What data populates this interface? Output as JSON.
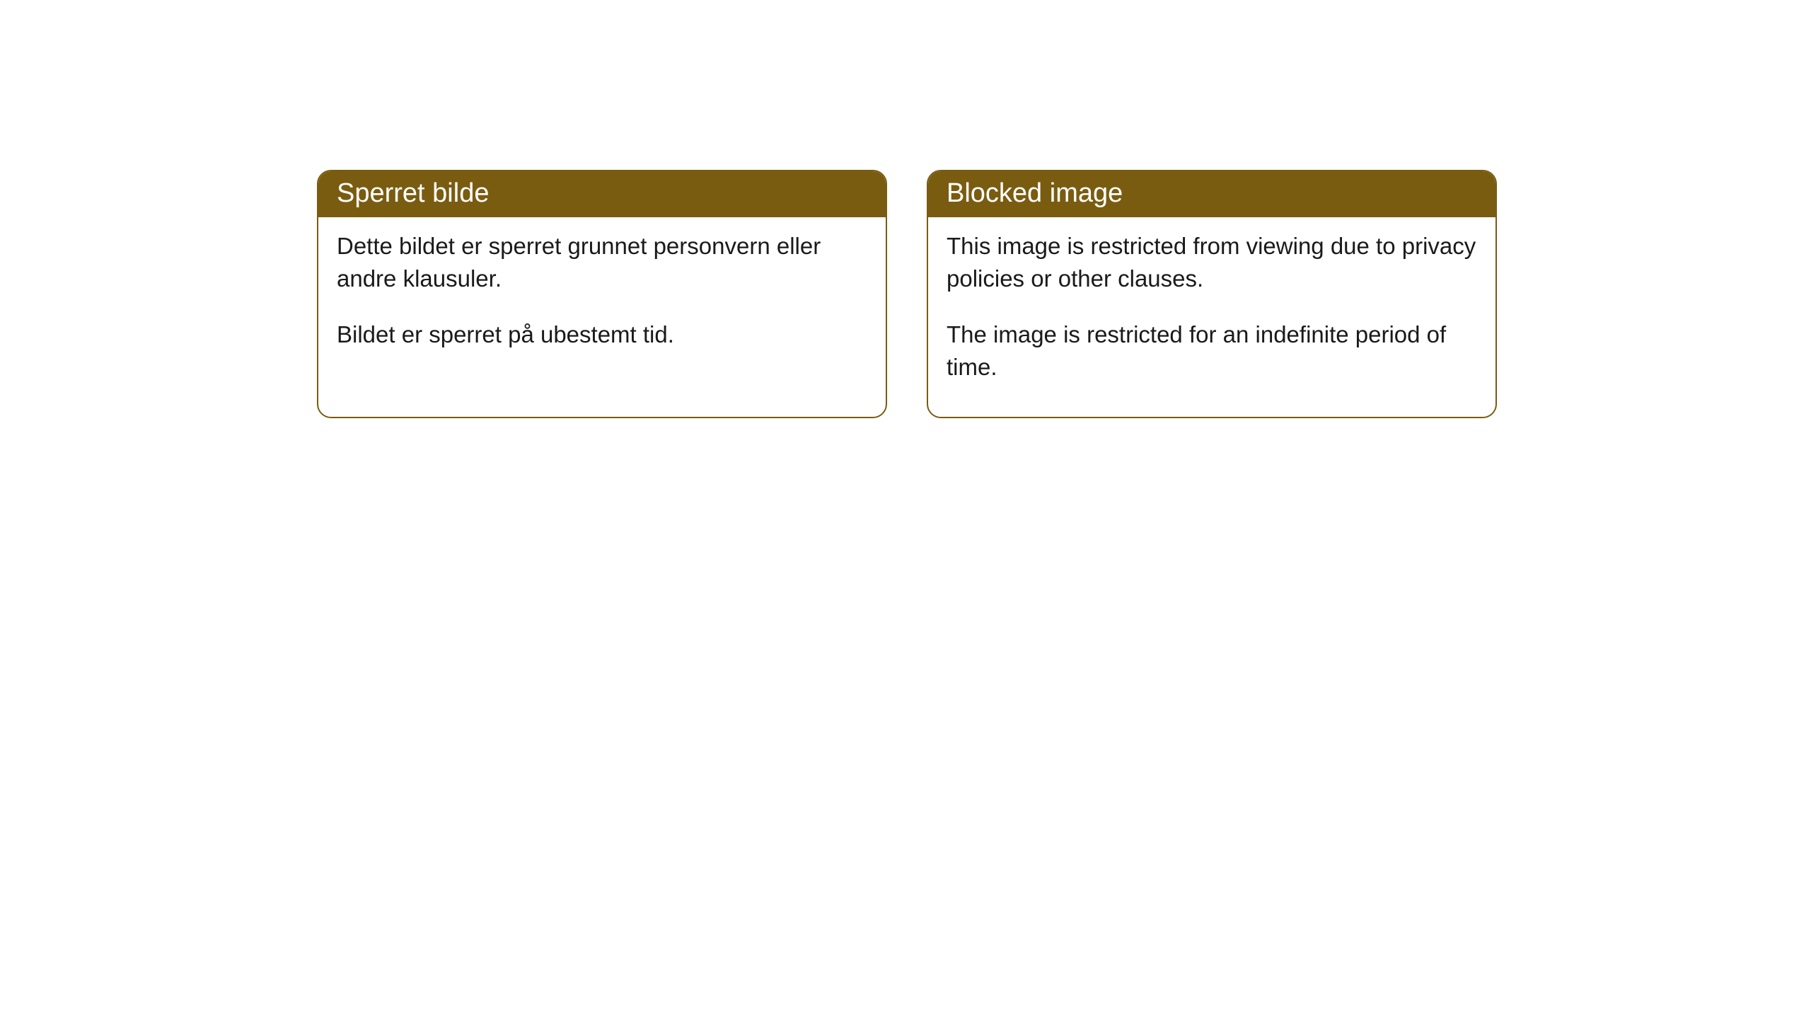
{
  "cards": [
    {
      "title": "Sperret bilde",
      "paragraph1": "Dette bildet er sperret grunnet personvern eller andre klausuler.",
      "paragraph2": "Bildet er sperret på ubestemt tid."
    },
    {
      "title": "Blocked image",
      "paragraph1": "This image is restricted from viewing due to privacy policies or other clauses.",
      "paragraph2": "The image is restricted for an indefinite period of time."
    }
  ],
  "styling": {
    "header_background": "#7a5c11",
    "header_text_color": "#ffffff",
    "border_color": "#7a5c11",
    "body_background": "#ffffff",
    "body_text_color": "#1a1a1a",
    "border_radius": 20,
    "title_fontsize": 38,
    "body_fontsize": 33
  }
}
